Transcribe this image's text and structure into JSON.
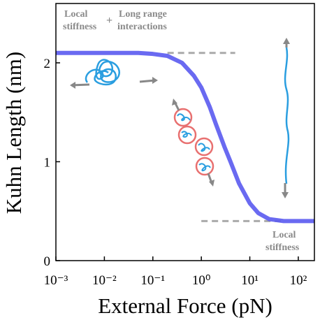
{
  "chart_data": {
    "type": "line",
    "xscale": "log",
    "x_label": "External Force (pN)",
    "y_label": "Kuhn Length (nm)",
    "x": [
      0.001,
      0.01,
      0.05,
      0.1,
      0.2,
      0.4,
      0.7,
      1,
      1.5,
      2,
      3,
      4,
      6,
      10,
      15,
      25,
      50,
      215
    ],
    "values": [
      2.1,
      2.1,
      2.1,
      2.09,
      2.07,
      2.0,
      1.87,
      1.75,
      1.55,
      1.38,
      1.15,
      1.0,
      0.78,
      0.58,
      0.48,
      0.42,
      0.4,
      0.4
    ],
    "color": "#5a5af0",
    "xlim": [
      0.001,
      215
    ],
    "ylim": [
      0,
      2.6
    ],
    "xticks": [
      {
        "value": 0.001,
        "label": "10⁻³"
      },
      {
        "value": 0.01,
        "label": "10⁻²"
      },
      {
        "value": 0.1,
        "label": "10⁻¹"
      },
      {
        "value": 1,
        "label": "10⁰"
      },
      {
        "value": 10,
        "label": "10¹"
      },
      {
        "value": 100,
        "label": "10²"
      }
    ],
    "yticks": [
      0,
      1,
      2
    ],
    "reference_lines": [
      {
        "y": 2.1,
        "x": [
          0.2,
          5
        ]
      },
      {
        "y": 0.4,
        "x": [
          1,
          50
        ]
      }
    ],
    "annotations": [
      {
        "lines": [
          "Local",
          "stiffness"
        ]
      },
      {
        "lines": [
          "+"
        ]
      },
      {
        "lines": [
          "Long range",
          "interactions"
        ]
      },
      {
        "lines": [
          "Local",
          "stiffness"
        ]
      }
    ]
  }
}
